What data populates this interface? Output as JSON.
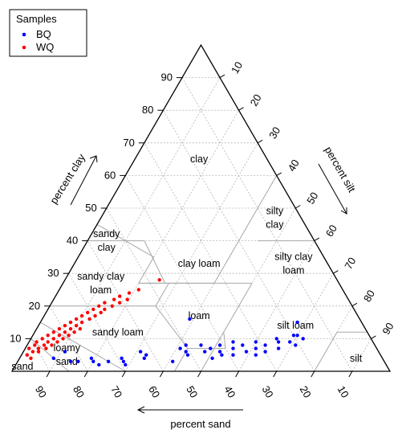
{
  "chart_data": {
    "type": "scatter",
    "subtype": "soil-texture-ternary",
    "title": "",
    "axes": {
      "clay": {
        "label": "percent clay",
        "ticks": [
          10,
          20,
          30,
          40,
          50,
          60,
          70,
          80,
          90
        ]
      },
      "silt": {
        "label": "percent silt",
        "ticks": [
          10,
          20,
          30,
          40,
          50,
          60,
          70,
          80,
          90
        ]
      },
      "sand": {
        "label": "percent sand",
        "ticks": [
          90,
          80,
          70,
          60,
          50,
          40,
          30,
          20,
          10
        ]
      }
    },
    "grid": true,
    "legend": {
      "title": "Samples",
      "position": "top-left"
    },
    "regions": [
      {
        "name": "clay",
        "lines": [
          "clay"
        ],
        "clay": 65,
        "silt": 17
      },
      {
        "name": "silty clay",
        "lines": [
          "silty",
          "clay"
        ],
        "clay": 47,
        "silt": 46
      },
      {
        "name": "sandy clay",
        "lines": [
          "sandy",
          "clay"
        ],
        "clay": 40,
        "silt": 5
      },
      {
        "name": "clay loam",
        "lines": [
          "clay loam"
        ],
        "clay": 33,
        "silt": 33
      },
      {
        "name": "silty clay loam",
        "lines": [
          "silty clay",
          "loam"
        ],
        "clay": 33,
        "silt": 58
      },
      {
        "name": "sandy clay loam",
        "lines": [
          "sandy clay",
          "loam"
        ],
        "clay": 27,
        "silt": 10
      },
      {
        "name": "loam",
        "lines": [
          "loam"
        ],
        "clay": 17,
        "silt": 41
      },
      {
        "name": "silt loam",
        "lines": [
          "silt loam"
        ],
        "clay": 14,
        "silt": 68
      },
      {
        "name": "sandy loam",
        "lines": [
          "sandy loam"
        ],
        "clay": 12,
        "silt": 22
      },
      {
        "name": "loamy sand",
        "lines": [
          "loamy",
          "sand"
        ],
        "clay": 5,
        "silt": 12
      },
      {
        "name": "sand",
        "lines": [
          "sand"
        ],
        "clay": 1.5,
        "silt": 2
      },
      {
        "name": "silt",
        "lines": [
          "silt"
        ],
        "clay": 4,
        "silt": 89
      }
    ],
    "series": [
      {
        "name": "BQ",
        "color": "#0000ff",
        "points": [
          {
            "clay": 4,
            "silt": 9
          },
          {
            "clay": 6,
            "silt": 11
          },
          {
            "clay": 3,
            "silt": 14
          },
          {
            "clay": 3,
            "silt": 16
          },
          {
            "clay": 4,
            "silt": 19
          },
          {
            "clay": 3,
            "silt": 20
          },
          {
            "clay": 2,
            "silt": 22
          },
          {
            "clay": 3,
            "silt": 24
          },
          {
            "clay": 4,
            "silt": 27
          },
          {
            "clay": 3,
            "silt": 28
          },
          {
            "clay": 2,
            "silt": 29
          },
          {
            "clay": 6,
            "silt": 31
          },
          {
            "clay": 5,
            "silt": 33
          },
          {
            "clay": 4,
            "silt": 33
          },
          {
            "clay": 16,
            "silt": 39
          },
          {
            "clay": 3,
            "silt": 41
          },
          {
            "clay": 7,
            "silt": 41
          },
          {
            "clay": 8,
            "silt": 42
          },
          {
            "clay": 6,
            "silt": 43
          },
          {
            "clay": 5,
            "silt": 44
          },
          {
            "clay": 8,
            "silt": 46
          },
          {
            "clay": 6,
            "silt": 48
          },
          {
            "clay": 7,
            "silt": 49
          },
          {
            "clay": 4,
            "silt": 51
          },
          {
            "clay": 8,
            "silt": 51
          },
          {
            "clay": 6,
            "silt": 52
          },
          {
            "clay": 5,
            "silt": 53
          },
          {
            "clay": 9,
            "silt": 54
          },
          {
            "clay": 7,
            "silt": 55
          },
          {
            "clay": 5,
            "silt": 56
          },
          {
            "clay": 8,
            "silt": 57
          },
          {
            "clay": 6,
            "silt": 59
          },
          {
            "clay": 9,
            "silt": 60
          },
          {
            "clay": 7,
            "silt": 61
          },
          {
            "clay": 5,
            "silt": 62
          },
          {
            "clay": 8,
            "silt": 63
          },
          {
            "clay": 6,
            "silt": 64
          },
          {
            "clay": 10,
            "silt": 65
          },
          {
            "clay": 9,
            "silt": 66
          },
          {
            "clay": 7,
            "silt": 67
          },
          {
            "clay": 15,
            "silt": 68
          },
          {
            "clay": 11,
            "silt": 69
          },
          {
            "clay": 9,
            "silt": 69
          },
          {
            "clay": 11,
            "silt": 70
          },
          {
            "clay": 8,
            "silt": 71
          },
          {
            "clay": 10,
            "silt": 72
          }
        ]
      },
      {
        "name": "WQ",
        "color": "#ff0000",
        "points": [
          {
            "clay": 7,
            "silt": 1
          },
          {
            "clay": 5,
            "silt": 1.5
          },
          {
            "clay": 8,
            "silt": 2
          },
          {
            "clay": 6,
            "silt": 2.5
          },
          {
            "clay": 9,
            "silt": 2
          },
          {
            "clay": 4,
            "silt": 3
          },
          {
            "clay": 7,
            "silt": 3.5
          },
          {
            "clay": 10,
            "silt": 3
          },
          {
            "clay": 6,
            "silt": 4
          },
          {
            "clay": 8,
            "silt": 4.5
          },
          {
            "clay": 9,
            "silt": 5
          },
          {
            "clay": 11,
            "silt": 4
          },
          {
            "clay": 7,
            "silt": 5.5
          },
          {
            "clay": 10,
            "silt": 6
          },
          {
            "clay": 12,
            "silt": 5
          },
          {
            "clay": 8,
            "silt": 6.5
          },
          {
            "clay": 11,
            "silt": 7
          },
          {
            "clay": 13,
            "silt": 6
          },
          {
            "clay": 9,
            "silt": 7.5
          },
          {
            "clay": 12,
            "silt": 8
          },
          {
            "clay": 14,
            "silt": 7
          },
          {
            "clay": 10,
            "silt": 8.5
          },
          {
            "clay": 13,
            "silt": 9
          },
          {
            "clay": 15,
            "silt": 8
          },
          {
            "clay": 11,
            "silt": 9.5
          },
          {
            "clay": 16,
            "silt": 9
          },
          {
            "clay": 14,
            "silt": 10
          },
          {
            "clay": 12,
            "silt": 10.5
          },
          {
            "clay": 17,
            "silt": 10
          },
          {
            "clay": 15,
            "silt": 11
          },
          {
            "clay": 18,
            "silt": 11
          },
          {
            "clay": 13,
            "silt": 11.5
          },
          {
            "clay": 19,
            "silt": 12
          },
          {
            "clay": 16,
            "silt": 12.5
          },
          {
            "clay": 20,
            "silt": 13
          },
          {
            "clay": 17,
            "silt": 13.5
          },
          {
            "clay": 21,
            "silt": 14
          },
          {
            "clay": 18,
            "silt": 14.5
          },
          {
            "clay": 19,
            "silt": 15
          },
          {
            "clay": 22,
            "silt": 16
          },
          {
            "clay": 20,
            "silt": 16.5
          },
          {
            "clay": 23,
            "silt": 17
          },
          {
            "clay": 21,
            "silt": 18
          },
          {
            "clay": 24,
            "silt": 19
          },
          {
            "clay": 22,
            "silt": 19.5
          },
          {
            "clay": 25,
            "silt": 21
          },
          {
            "clay": 28,
            "silt": 25
          }
        ]
      }
    ]
  }
}
